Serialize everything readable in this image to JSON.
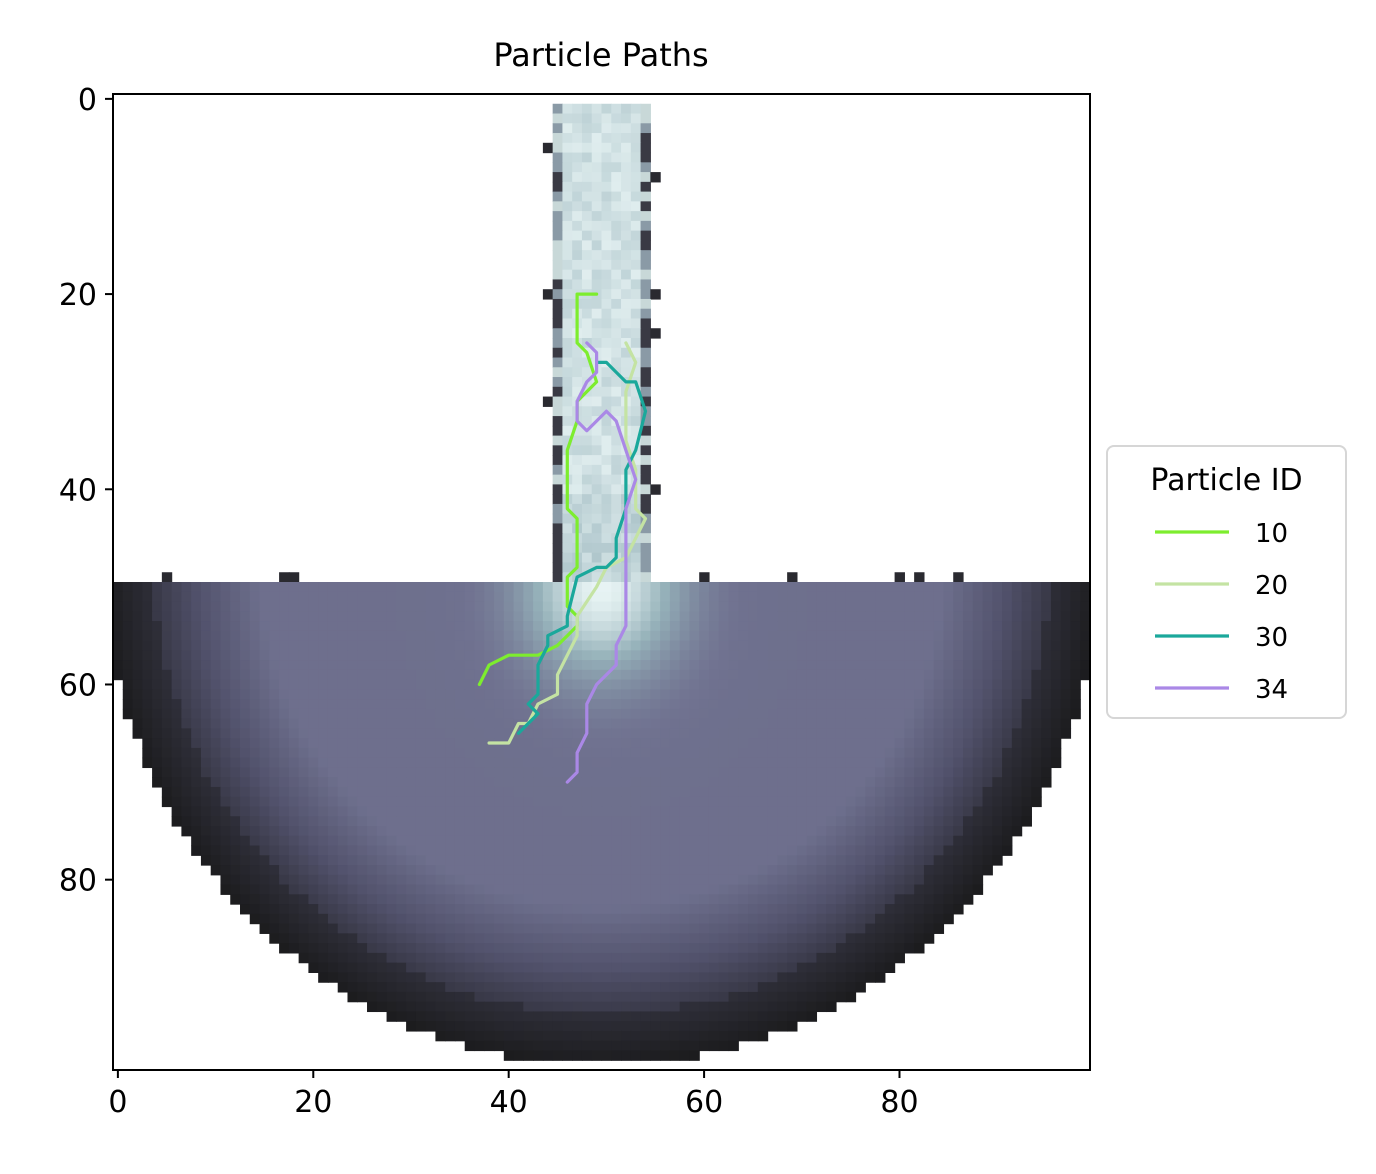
{
  "chart_data": {
    "type": "line",
    "title": "Particle Paths",
    "xlabel": "",
    "ylabel": "",
    "xlim": [
      -0.5,
      99.5
    ],
    "ylim": [
      99.5,
      -0.5
    ],
    "y_inverted": true,
    "xticks": [
      0,
      20,
      40,
      60,
      80
    ],
    "yticks": [
      0,
      20,
      40,
      60,
      80
    ],
    "grid": false,
    "background": "grayscale image (bone colormap) of a funnel-shaped domain: narrow vertical channel x≈45–54 for y≈1–49 joined to a wide basin for y≈50–98",
    "legend": {
      "title": "Particle ID",
      "placement": "center-right, outside plot"
    },
    "series": [
      {
        "name": "10",
        "color": "#7ded2e",
        "x": [
          49,
          47,
          47,
          48,
          49,
          47,
          47,
          46,
          46,
          47,
          47,
          46,
          46,
          47,
          47,
          46,
          45,
          43,
          42,
          40,
          38,
          37
        ],
        "y": [
          20,
          20,
          25,
          26,
          29,
          31,
          33,
          36,
          42,
          43,
          48,
          49,
          52,
          53,
          54,
          55,
          56,
          57,
          57,
          57,
          58,
          60
        ]
      },
      {
        "name": "20",
        "color": "#c4e3a3",
        "x": [
          52,
          53,
          52,
          52,
          53,
          53,
          53,
          54,
          52,
          50,
          49,
          47,
          47,
          45,
          45,
          43,
          42,
          41,
          40,
          38
        ],
        "y": [
          25,
          27,
          30,
          35,
          38,
          40,
          42,
          43,
          47,
          48,
          50,
          53,
          55,
          59,
          61,
          62,
          64,
          64,
          66,
          66
        ]
      },
      {
        "name": "30",
        "color": "#1aa89b",
        "x": [
          49,
          50,
          51,
          52,
          53,
          54,
          53,
          52,
          52,
          51,
          51,
          50,
          49,
          47,
          46,
          46,
          44,
          44,
          43,
          43,
          42,
          43,
          42,
          41
        ],
        "y": [
          27,
          27,
          28,
          29,
          29,
          32,
          36,
          38,
          42,
          45,
          47,
          48,
          48,
          49,
          53,
          54,
          55,
          56,
          58,
          61,
          62,
          63,
          64,
          65
        ]
      },
      {
        "name": "34",
        "color": "#aa88e6",
        "x": [
          48,
          49,
          49,
          48,
          47,
          47,
          48,
          49,
          50,
          51,
          52,
          53,
          52,
          52,
          52,
          51,
          51,
          51,
          50,
          49,
          48,
          48,
          47,
          47,
          46
        ],
        "y": [
          25,
          26,
          28,
          29,
          31,
          33,
          34,
          33,
          32,
          33,
          36,
          39,
          42,
          47,
          54,
          56,
          57,
          58,
          59,
          60,
          62,
          65,
          67,
          69,
          70
        ]
      }
    ]
  }
}
